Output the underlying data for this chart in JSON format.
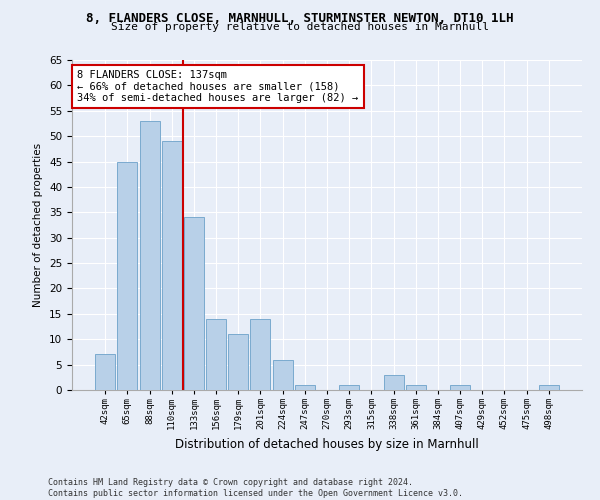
{
  "title": "8, FLANDERS CLOSE, MARNHULL, STURMINSTER NEWTON, DT10 1LH",
  "subtitle": "Size of property relative to detached houses in Marnhull",
  "xlabel": "Distribution of detached houses by size in Marnhull",
  "ylabel": "Number of detached properties",
  "categories": [
    "42sqm",
    "65sqm",
    "88sqm",
    "110sqm",
    "133sqm",
    "156sqm",
    "179sqm",
    "201sqm",
    "224sqm",
    "247sqm",
    "270sqm",
    "293sqm",
    "315sqm",
    "338sqm",
    "361sqm",
    "384sqm",
    "407sqm",
    "429sqm",
    "452sqm",
    "475sqm",
    "498sqm"
  ],
  "values": [
    7,
    45,
    53,
    49,
    34,
    14,
    11,
    14,
    6,
    1,
    0,
    1,
    0,
    3,
    1,
    0,
    1,
    0,
    0,
    0,
    1
  ],
  "bar_color": "#b8d0e8",
  "bar_edge_color": "#7aaacf",
  "vline_x": 3.5,
  "vline_color": "#cc0000",
  "annotation_title": "8 FLANDERS CLOSE: 137sqm",
  "annotation_line1": "← 66% of detached houses are smaller (158)",
  "annotation_line2": "34% of semi-detached houses are larger (82) →",
  "annotation_box_color": "#ffffff",
  "annotation_box_edge_color": "#cc0000",
  "ylim": [
    0,
    65
  ],
  "yticks": [
    0,
    5,
    10,
    15,
    20,
    25,
    30,
    35,
    40,
    45,
    50,
    55,
    60,
    65
  ],
  "background_color": "#e8eef8",
  "plot_bg_color": "#e8eef8",
  "grid_color": "#ffffff",
  "footer_line1": "Contains HM Land Registry data © Crown copyright and database right 2024.",
  "footer_line2": "Contains public sector information licensed under the Open Government Licence v3.0."
}
